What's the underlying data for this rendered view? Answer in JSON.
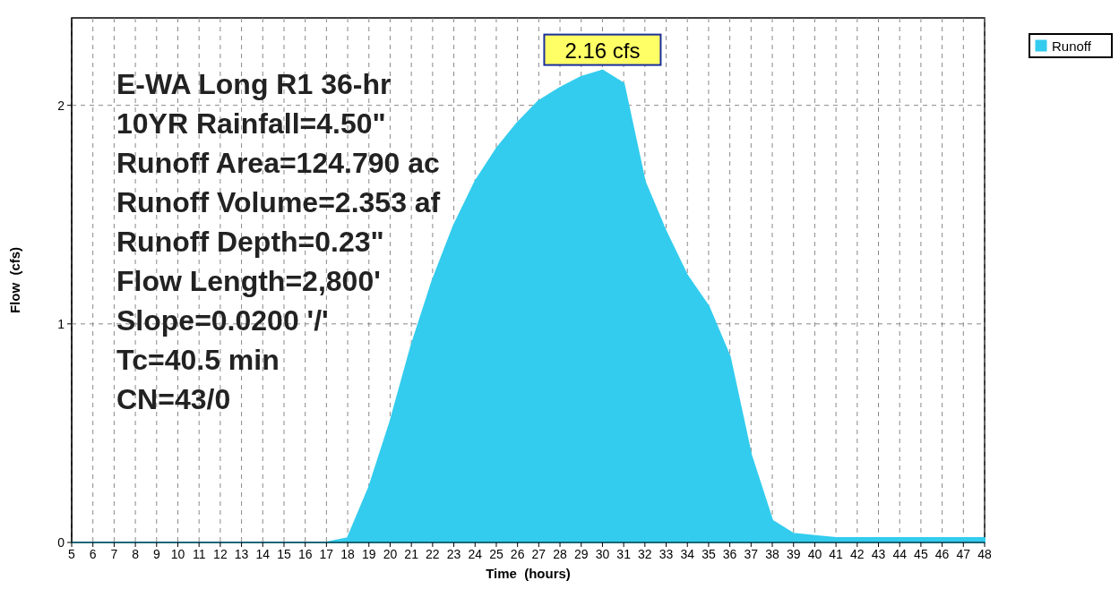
{
  "chart_data": {
    "type": "area",
    "xlabel": "Time  (hours)",
    "ylabel": "Flow  (cfs)",
    "x": [
      5,
      6,
      7,
      8,
      9,
      10,
      11,
      12,
      13,
      14,
      15,
      16,
      17,
      18,
      19,
      20,
      21,
      22,
      23,
      24,
      25,
      26,
      27,
      28,
      29,
      30,
      31,
      32,
      33,
      34,
      35,
      36,
      37,
      38,
      39,
      40,
      41,
      42,
      43,
      44,
      45,
      46,
      47,
      48
    ],
    "series": [
      {
        "name": "Runoff",
        "color": "#33ccee",
        "values": [
          0,
          0,
          0,
          0,
          0,
          0,
          0,
          0,
          0,
          0,
          0,
          0,
          0,
          0.02,
          0.25,
          0.55,
          0.9,
          1.2,
          1.45,
          1.65,
          1.8,
          1.92,
          2.02,
          2.08,
          2.13,
          2.16,
          2.1,
          1.65,
          1.42,
          1.22,
          1.08,
          0.85,
          0.4,
          0.1,
          0.04,
          0.03,
          0.02,
          0.02,
          0.02,
          0.02,
          0.02,
          0.02,
          0.02,
          0.02
        ]
      }
    ],
    "xlim": [
      5,
      48
    ],
    "ylim": [
      0,
      2.4
    ],
    "xticks": [
      5,
      6,
      7,
      8,
      9,
      10,
      11,
      12,
      13,
      14,
      15,
      16,
      17,
      18,
      19,
      20,
      21,
      22,
      23,
      24,
      25,
      26,
      27,
      28,
      29,
      30,
      31,
      32,
      33,
      34,
      35,
      36,
      37,
      38,
      39,
      40,
      41,
      42,
      43,
      44,
      45,
      46,
      47,
      48
    ],
    "yticks": [
      0,
      1,
      2
    ],
    "grid": true,
    "legend": "top right",
    "annotations": [
      {
        "text": "2.16 cfs",
        "x": 30,
        "y": 2.16
      },
      "E-WA Long R1 36-hr",
      "10YR Rainfall=4.50\"",
      "Runoff Area=124.790 ac",
      "Runoff Volume=2.353 af",
      "Runoff Depth=0.23\"",
      "Flow Length=2,800'",
      "Slope=0.0200 '/'",
      "Tc=40.5 min",
      "CN=43/0"
    ]
  }
}
